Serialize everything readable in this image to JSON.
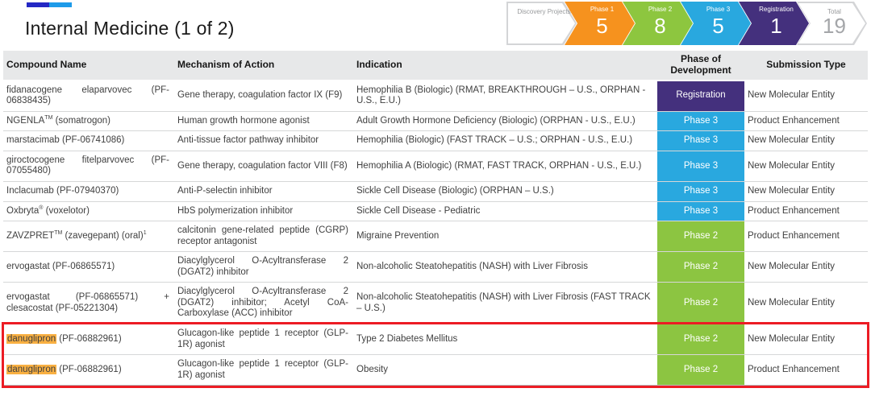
{
  "page": {
    "title": "Internal Medicine (1 of 2)"
  },
  "accent_bar": {
    "colors": [
      "#2428c4",
      "#1e9be9"
    ]
  },
  "pipeline": {
    "stages": [
      {
        "label": "Discovery Projects",
        "count": "",
        "type": "outline",
        "color": "#d4d5d7"
      },
      {
        "label": "Phase 1",
        "count": "5",
        "type": "solid",
        "color": "#f6921e"
      },
      {
        "label": "Phase 2",
        "count": "8",
        "type": "solid",
        "color": "#8dc63f"
      },
      {
        "label": "Phase 3",
        "count": "5",
        "type": "solid",
        "color": "#29a8df"
      },
      {
        "label": "Registration",
        "count": "1",
        "type": "solid",
        "color": "#44307d"
      },
      {
        "label": "Total",
        "count": "19",
        "type": "outline",
        "color": "#d4d5d7"
      }
    ]
  },
  "table": {
    "columns": [
      "Compound Name",
      "Mechanism of Action",
      "Indication",
      "Phase of Development",
      "Submission Type"
    ],
    "phase_colors": {
      "Registration": "#44307d",
      "Phase 3": "#29a8df",
      "Phase 2": "#8cc541"
    },
    "highlight_color": "#f9b042",
    "rows": [
      {
        "compound": [
          {
            "t": "fidanacogene elaparvovec (PF-06838435)"
          }
        ],
        "mechanism": "Gene therapy, coagulation factor IX (F9)",
        "indication": "Hemophilia B (Biologic) (RMAT, BREAKTHROUGH – U.S., ORPHAN - U.S., E.U.)",
        "phase": "Registration",
        "submission": "New Molecular Entity",
        "annotated": false
      },
      {
        "compound": [
          {
            "t": "NGENLA"
          },
          {
            "t": "TM",
            "s": "sup"
          },
          {
            "t": " (somatrogon)"
          }
        ],
        "mechanism": "Human growth hormone agonist",
        "indication": "Adult Growth Hormone Deficiency (Biologic) (ORPHAN - U.S., E.U.)",
        "phase": "Phase 3",
        "submission": "Product Enhancement",
        "annotated": false
      },
      {
        "compound": [
          {
            "t": "marstacimab (PF-06741086)"
          }
        ],
        "mechanism": "Anti-tissue factor pathway inhibitor",
        "indication": "Hemophilia (Biologic) (FAST TRACK – U.S.;  ORPHAN - U.S., E.U.)",
        "phase": "Phase 3",
        "submission": "New Molecular Entity",
        "annotated": false
      },
      {
        "compound": [
          {
            "t": "giroctocogene fitelparvovec (PF-07055480)"
          }
        ],
        "mechanism": "Gene therapy, coagulation factor VIII (F8)",
        "indication": "Hemophilia A (Biologic) (RMAT, FAST TRACK, ORPHAN - U.S., E.U.)",
        "phase": "Phase 3",
        "submission": "New Molecular Entity",
        "annotated": false
      },
      {
        "compound": [
          {
            "t": "Inclacumab (PF-07940370)"
          }
        ],
        "mechanism": "Anti-P-selectin inhibitor",
        "indication": "Sickle Cell Disease (Biologic) (ORPHAN – U.S.)",
        "phase": "Phase 3",
        "submission": "New Molecular Entity",
        "annotated": false
      },
      {
        "compound": [
          {
            "t": "Oxbryta"
          },
          {
            "t": "®",
            "s": "sup"
          },
          {
            "t": " (voxelotor)"
          }
        ],
        "mechanism": "HbS polymerization inhibitor",
        "indication": "Sickle Cell Disease - Pediatric",
        "phase": "Phase 3",
        "submission": "Product Enhancement",
        "annotated": false
      },
      {
        "compound": [
          {
            "t": "ZAVZPRET"
          },
          {
            "t": "TM",
            "s": "sup"
          },
          {
            "t": " (zavegepant) (oral)"
          },
          {
            "t": "1",
            "s": "sup"
          }
        ],
        "mechanism": "calcitonin gene-related peptide (CGRP) receptor antagonist",
        "indication": "Migraine Prevention",
        "phase": "Phase 2",
        "submission": "Product Enhancement",
        "annotated": false
      },
      {
        "compound": [
          {
            "t": "ervogastat (PF-06865571)"
          }
        ],
        "mechanism": "Diacylglycerol O-Acyltransferase 2 (DGAT2) inhibitor",
        "indication": "Non-alcoholic Steatohepatitis (NASH) with Liver Fibrosis",
        "phase": "Phase 2",
        "submission": "New Molecular Entity",
        "annotated": false
      },
      {
        "compound": [
          {
            "t": "ervogastat (PF-06865571) + clesacostat (PF-05221304)"
          }
        ],
        "mechanism": "Diacylglycerol O-Acyltransferase 2 (DGAT2) inhibitor; Acetyl CoA-Carboxylase (ACC) inhibitor",
        "indication": "Non-alcoholic Steatohepatitis (NASH) with Liver Fibrosis (FAST TRACK – U.S.)",
        "phase": "Phase 2",
        "submission": "New Molecular Entity",
        "annotated": false
      },
      {
        "compound": [
          {
            "t": "danuglipron",
            "s": "hl"
          },
          {
            "t": " (PF-06882961)"
          }
        ],
        "mechanism": "Glucagon-like peptide 1 receptor (GLP-1R) agonist",
        "indication": "Type 2 Diabetes Mellitus",
        "phase": "Phase 2",
        "submission": "New Molecular Entity",
        "annotated": true
      },
      {
        "compound": [
          {
            "t": "danuglipron",
            "s": "hl"
          },
          {
            "t": " (PF-06882961)"
          }
        ],
        "mechanism": "Glucagon-like peptide 1 receptor (GLP-1R) agonist",
        "indication": "Obesity",
        "phase": "Phase 2",
        "submission": "Product Enhancement",
        "annotated": true
      }
    ]
  },
  "annotation": {
    "box_color": "#ec1c24"
  }
}
